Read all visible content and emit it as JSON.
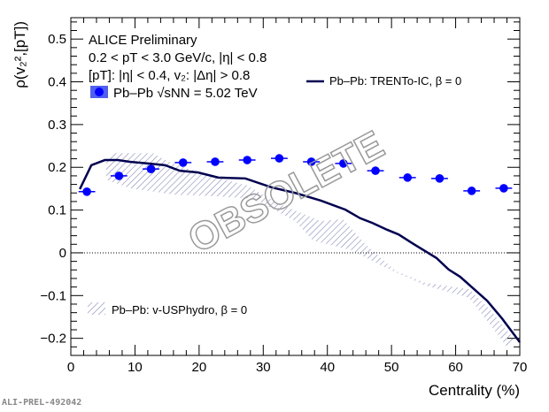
{
  "chart_data": {
    "type": "scatter",
    "xlabel": "Centrality (%)",
    "ylabel": "ρ(v₂²,[pT])",
    "xlim": [
      0,
      70
    ],
    "ylim": [
      -0.24,
      0.55
    ],
    "xticks": [
      0,
      10,
      20,
      30,
      40,
      50,
      60,
      70
    ],
    "yticks": [
      -0.2,
      -0.1,
      0,
      0.1,
      0.2,
      0.3,
      0.4,
      0.5
    ],
    "xtick_labels": [
      "0",
      "10",
      "20",
      "30",
      "40",
      "50",
      "60",
      "70"
    ],
    "ytick_labels": [
      "−0.2",
      "−0.1",
      "0",
      "0.1",
      "0.2",
      "0.3",
      "0.4",
      "0.5"
    ],
    "annotations": [
      "ALICE Preliminary",
      "0.2 < pT < 3.0 GeV/c, |η| < 0.8",
      "[pT]: |η| < 0.4, v₂: |Δη| > 0.8"
    ],
    "watermark": "OBSOLETE",
    "series": [
      {
        "name": "Pb–Pb √sNN = 5.02 TeV",
        "type": "points",
        "color": "#0000ff",
        "x": [
          2.5,
          7.5,
          12.5,
          17.5,
          22.5,
          27.5,
          32.5,
          37.5,
          42.5,
          47.5,
          52.5,
          57.5,
          62.5,
          67.5
        ],
        "y": [
          0.143,
          0.18,
          0.196,
          0.211,
          0.213,
          0.217,
          0.221,
          0.213,
          0.209,
          0.192,
          0.176,
          0.174,
          0.145,
          0.151
        ]
      },
      {
        "name": "Pb–Pb: TRENTo-IC, β = 0",
        "type": "line",
        "color": "#000050",
        "x": [
          1.4,
          3.2,
          5.3,
          7.3,
          9.2,
          12,
          14.7,
          17,
          19.8,
          23,
          27.2,
          31.3,
          35,
          39,
          42.8,
          45.1,
          47,
          49.3,
          51.1,
          53.4,
          57,
          58.9,
          60.7,
          64.9,
          67.2,
          70
        ],
        "y": [
          0.149,
          0.205,
          0.217,
          0.217,
          0.213,
          0.209,
          0.205,
          0.192,
          0.188,
          0.176,
          0.174,
          0.153,
          0.14,
          0.122,
          0.101,
          0.081,
          0.07,
          0.054,
          0.043,
          0.021,
          -0.012,
          -0.039,
          -0.056,
          -0.112,
          -0.153,
          -0.209
        ]
      },
      {
        "name": "Pb–Pb: v-USPhydro, β = 0",
        "type": "band",
        "color": "#8888bb",
        "upper": {
          "x": [
            5.5,
            6.9,
            12.8,
            15.2,
            20.7,
            27.6,
            32.2,
            39,
            42.4,
            46,
            50.7,
            55.2,
            62.1,
            65.3,
            69
          ],
          "y": [
            0.219,
            0.233,
            0.233,
            0.213,
            0.184,
            0.157,
            0.116,
            0.074,
            0.079,
            0.019,
            -0.043,
            -0.07,
            -0.085,
            -0.132,
            -0.2
          ]
        },
        "lower": {
          "x": [
            5.5,
            9.2,
            16.2,
            23,
            28.6,
            35,
            37.7,
            43.8,
            48.3,
            55.2,
            62.1,
            66.7,
            68
          ],
          "y": [
            0.171,
            0.151,
            0.136,
            0.132,
            0.126,
            0.074,
            0.029,
            0.006,
            -0.029,
            -0.076,
            -0.105,
            -0.194,
            -0.22
          ]
        }
      }
    ],
    "legend": [
      "Pb–Pb √sNN = 5.02 TeV",
      "Pb–Pb: TRENTo-IC, β = 0",
      "Pb–Pb: v-USPhydro, β = 0"
    ]
  },
  "footer": "ALI-PREL-492042"
}
